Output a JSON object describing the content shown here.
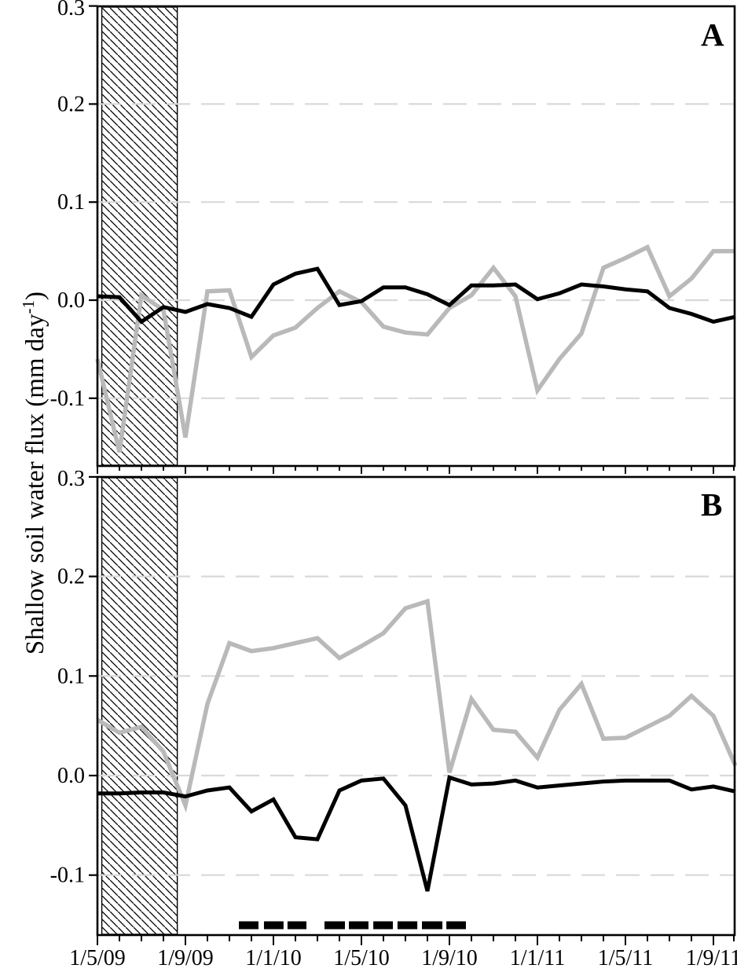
{
  "figure": {
    "y_axis_label": {
      "main": "Shallow soil water flux (mm day",
      "sup": "-1",
      "end": ")"
    },
    "panels": [
      {
        "label": "A"
      },
      {
        "label": "B"
      }
    ],
    "colors": {
      "black_series": "#000000",
      "gray_series": "#b9b9b9",
      "gridline": "#d9d9d9",
      "frame": "#000000",
      "hatch": "#000000",
      "background": "#ffffff"
    }
  },
  "x_axis": {
    "major_tick_labels": [
      "1/5/09",
      "1/9/09",
      "1/1/10",
      "1/5/10",
      "1/9/10",
      "1/1/11",
      "1/5/11",
      "1/9/11"
    ],
    "minor_tick_interval": "1 month",
    "major_tick_interval": "4 months"
  },
  "chart_data": [
    {
      "type": "line",
      "panel": "A",
      "ylabel": "Shallow soil water flux (mm day^-1)",
      "ylim": [
        -0.168,
        0.3
      ],
      "y_ticks": [
        0.3,
        0.2,
        0.1,
        0.0,
        -0.1
      ],
      "y_tick_labels": [
        "0.3",
        "0.2",
        "0.1",
        "0.0",
        "-0.1"
      ],
      "grid": "dashed horizontal gridlines at 0.2, 0.1, 0.0, -0.1",
      "legend": "none",
      "x": [
        "5/09",
        "6/09",
        "7/09",
        "8/09",
        "9/09",
        "10/09",
        "11/09",
        "12/09",
        "1/10",
        "2/10",
        "3/10",
        "4/10",
        "5/10",
        "6/10",
        "7/10",
        "8/10",
        "9/10",
        "10/10",
        "11/10",
        "12/10",
        "1/11",
        "2/11",
        "3/11",
        "4/11",
        "5/11",
        "6/11",
        "7/11",
        "8/11",
        "9/11",
        "10/11"
      ],
      "series": [
        {
          "name": "gray line",
          "color": "#b9b9b9",
          "values": [
            -0.06,
            -0.155,
            0.005,
            -0.01,
            -0.14,
            0.009,
            0.01,
            -0.058,
            -0.036,
            -0.028,
            -0.008,
            0.009,
            -0.002,
            -0.027,
            -0.033,
            -0.035,
            -0.008,
            0.005,
            0.033,
            0.004,
            -0.092,
            -0.06,
            -0.034,
            0.033,
            0.043,
            0.054,
            0.004,
            0.022,
            0.05,
            0.05
          ]
        },
        {
          "name": "black line",
          "color": "#000000",
          "values": [
            0.004,
            0.003,
            -0.022,
            -0.007,
            -0.012,
            -0.004,
            -0.008,
            -0.017,
            0.016,
            0.027,
            0.032,
            -0.005,
            -0.001,
            0.013,
            0.013,
            0.006,
            -0.005,
            0.015,
            0.015,
            0.016,
            0.001,
            0.007,
            0.016,
            0.014,
            0.011,
            0.009,
            -0.008,
            -0.014,
            -0.022,
            -0.017
          ]
        }
      ],
      "annotations": {
        "hatched_region": {
          "x_start_month_index": 0.2,
          "x_end_month_index": 3.63
        }
      }
    },
    {
      "type": "line",
      "panel": "B",
      "ylabel": "Shallow soil water flux (mm day^-1)",
      "ylim": [
        -0.16,
        0.3
      ],
      "y_ticks": [
        0.3,
        0.2,
        0.1,
        0.0,
        -0.1
      ],
      "y_tick_labels": [
        "0.3",
        "0.2",
        "0.1",
        "0.0",
        "-0.1"
      ],
      "grid": "dashed horizontal gridlines at 0.2, 0.1, 0.0, -0.1",
      "legend": "none",
      "x": [
        "5/09",
        "6/09",
        "7/09",
        "8/09",
        "9/09",
        "10/09",
        "11/09",
        "12/09",
        "1/10",
        "2/10",
        "3/10",
        "4/10",
        "5/10",
        "6/10",
        "7/10",
        "8/10",
        "9/10",
        "10/10",
        "11/10",
        "12/10",
        "1/11",
        "2/11",
        "3/11",
        "4/11",
        "5/11",
        "6/11",
        "7/11",
        "8/11",
        "9/11",
        "10/11"
      ],
      "series": [
        {
          "name": "gray line",
          "color": "#b9b9b9",
          "values": [
            0.056,
            0.043,
            0.049,
            0.024,
            -0.03,
            0.072,
            0.133,
            0.125,
            0.128,
            0.133,
            0.138,
            0.118,
            0.13,
            0.143,
            0.168,
            0.175,
            0.003,
            0.077,
            0.046,
            0.044,
            0.018,
            0.066,
            0.092,
            0.037,
            0.038,
            0.049,
            0.06,
            0.08,
            0.06,
            0.01
          ]
        },
        {
          "name": "black line",
          "color": "#000000",
          "values": [
            -0.018,
            -0.018,
            -0.017,
            -0.017,
            -0.021,
            -0.015,
            -0.012,
            -0.036,
            -0.024,
            -0.062,
            -0.064,
            -0.015,
            -0.005,
            -0.003,
            -0.03,
            -0.116,
            -0.002,
            -0.009,
            -0.008,
            -0.005,
            -0.012,
            -0.01,
            -0.008,
            -0.006,
            -0.005,
            -0.005,
            -0.005,
            -0.014,
            -0.011,
            -0.016
          ]
        }
      ],
      "annotations": {
        "hatched_region": {
          "x_start_month_index": 0.2,
          "x_end_month_index": 3.63
        },
        "dashed_marker_bar_month_index": [
          [
            6.43,
            7.32
          ],
          [
            7.57,
            8.46
          ],
          [
            8.64,
            9.5
          ],
          [
            10.32,
            11.25
          ],
          [
            11.43,
            12.32
          ],
          [
            12.54,
            13.43
          ],
          [
            13.64,
            14.54
          ],
          [
            14.75,
            15.68
          ],
          [
            15.86,
            16.75
          ]
        ]
      }
    }
  ]
}
